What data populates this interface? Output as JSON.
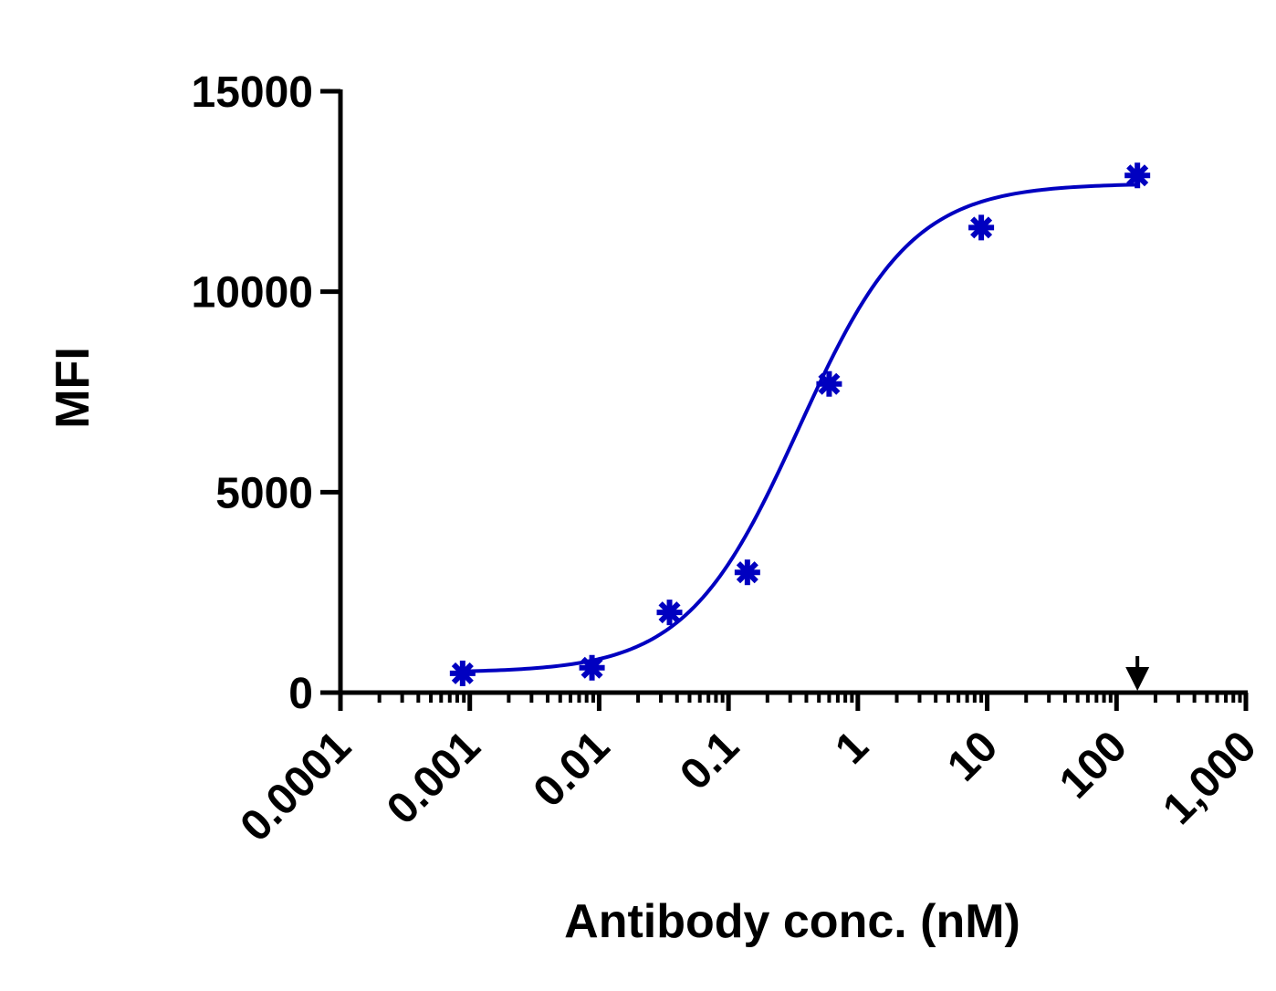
{
  "chart_data": {
    "type": "scatter",
    "title": "",
    "xlabel": "Antibody conc. (nM)",
    "ylabel": "MFI",
    "x_scale": "log",
    "xlim": [
      0.0001,
      1000
    ],
    "ylim": [
      0,
      15000
    ],
    "x_tick_labels": [
      "0.0001",
      "0.001",
      "0.01",
      "0.1",
      "1",
      "10",
      "100",
      "1,000"
    ],
    "y_ticks": [
      0,
      5000,
      10000,
      15000
    ],
    "y_tick_labels": [
      "0",
      "5000",
      "10000",
      "15000"
    ],
    "grid": false,
    "series": [
      {
        "marker": "asterisk",
        "color": "#0000c0",
        "points": [
          {
            "x": 0.00088,
            "y": 480
          },
          {
            "x": 0.0088,
            "y": 620
          },
          {
            "x": 0.035,
            "y": 2000
          },
          {
            "x": 0.14,
            "y": 3000
          },
          {
            "x": 0.6,
            "y": 7700
          },
          {
            "x": 9.0,
            "y": 11600
          },
          {
            "x": 145,
            "y": 12900
          }
        ],
        "fit_curve": {
          "type": "4PL",
          "bottom": 500,
          "top": 12700,
          "ec50": 0.35,
          "hill": 1.0,
          "x_range": [
            0.00088,
            145
          ]
        }
      }
    ],
    "annotations": [
      {
        "type": "arrow-down",
        "x": 145,
        "color": "#000000"
      }
    ]
  }
}
